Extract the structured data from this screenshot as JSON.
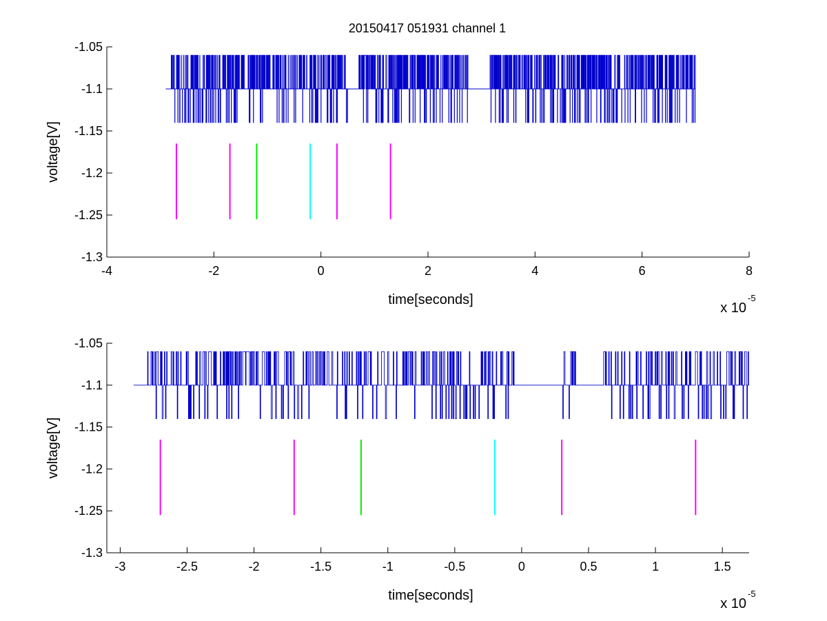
{
  "figure_title": "20150417 051931 channel 1",
  "colors": {
    "signal": "#0000cc",
    "magenta": "#ff00ff",
    "green": "#00ee00",
    "cyan": "#00ffff",
    "axis": "#000000"
  },
  "chart_data": [
    {
      "type": "line",
      "title": "20150417 051931 channel 1",
      "xlabel": "time[seconds]",
      "ylabel": "voltage[V]",
      "x_exponent_label": "x 10",
      "x_exponent": "-5",
      "xlim": [
        -4,
        8
      ],
      "ylim": [
        -1.3,
        -1.05
      ],
      "xticks": [
        -4,
        -2,
        0,
        2,
        4,
        6,
        8
      ],
      "xtick_labels": [
        "-4",
        "-2",
        "0",
        "2",
        "4",
        "6",
        "8"
      ],
      "yticks": [
        -1.3,
        -1.25,
        -1.2,
        -1.15,
        -1.1,
        -1.05
      ],
      "ytick_labels": [
        "-1.3",
        "-1.25",
        "-1.2",
        "-1.15",
        "-1.1",
        "-1.05"
      ],
      "grid": false,
      "series": [
        {
          "kind": "digitized_trace",
          "color": "#0000cc",
          "x_range": [
            -2.9,
            7.0
          ],
          "levels": [
            -1.14,
            -1.1,
            -1.06
          ],
          "baseline": -1.1,
          "quiet_intervals": [
            [
              -2.9,
              -2.8
            ],
            [
              0.5,
              0.7
            ],
            [
              2.75,
              3.15
            ]
          ],
          "description_points": [
            {
              "x": -2.9,
              "y": -1.1
            },
            {
              "x": 7.0,
              "y": -1.1
            }
          ]
        }
      ],
      "markers": [
        {
          "x": -2.7,
          "y_range": [
            -1.255,
            -1.165
          ],
          "color": "#ff00ff"
        },
        {
          "x": -1.7,
          "y_range": [
            -1.255,
            -1.165
          ],
          "color": "#ff00ff"
        },
        {
          "x": -1.2,
          "y_range": [
            -1.255,
            -1.165
          ],
          "color": "#00ee00"
        },
        {
          "x": -0.2,
          "y_range": [
            -1.255,
            -1.165
          ],
          "color": "#00ffff"
        },
        {
          "x": 0.3,
          "y_range": [
            -1.255,
            -1.165
          ],
          "color": "#ff00ff"
        },
        {
          "x": 1.3,
          "y_range": [
            -1.255,
            -1.165
          ],
          "color": "#ff00ff"
        }
      ]
    },
    {
      "type": "line",
      "title": "",
      "xlabel": "time[seconds]",
      "ylabel": "voltage[V]",
      "x_exponent_label": "x 10",
      "x_exponent": "-5",
      "xlim": [
        -3.1,
        1.7
      ],
      "ylim": [
        -1.3,
        -1.05
      ],
      "xticks": [
        -3,
        -2.5,
        -2,
        -1.5,
        -1,
        -0.5,
        0,
        0.5,
        1,
        1.5
      ],
      "xtick_labels": [
        "-3",
        "-2.5",
        "-2",
        "-1.5",
        "-1",
        "-0.5",
        "0",
        "0.5",
        "1",
        "1.5"
      ],
      "yticks": [
        -1.3,
        -1.25,
        -1.2,
        -1.15,
        -1.1,
        -1.05
      ],
      "ytick_labels": [
        "-1.3",
        "-1.25",
        "-1.2",
        "-1.15",
        "-1.1",
        "-1.05"
      ],
      "grid": false,
      "series": [
        {
          "kind": "digitized_trace",
          "color": "#0000cc",
          "x_range": [
            -2.9,
            1.7
          ],
          "levels": [
            -1.14,
            -1.1,
            -1.06
          ],
          "baseline": -1.1,
          "quiet_intervals": [
            [
              -2.9,
              -2.8
            ],
            [
              -0.05,
              0.3
            ],
            [
              0.4,
              0.6
            ]
          ],
          "description_points": [
            {
              "x": -2.9,
              "y": -1.1
            },
            {
              "x": 1.7,
              "y": -1.1
            }
          ]
        }
      ],
      "markers": [
        {
          "x": -2.7,
          "y_range": [
            -1.255,
            -1.165
          ],
          "color": "#ff00ff"
        },
        {
          "x": -1.7,
          "y_range": [
            -1.255,
            -1.165
          ],
          "color": "#ff00ff"
        },
        {
          "x": -1.2,
          "y_range": [
            -1.255,
            -1.165
          ],
          "color": "#00ee00"
        },
        {
          "x": -0.2,
          "y_range": [
            -1.255,
            -1.165
          ],
          "color": "#00ffff"
        },
        {
          "x": 0.3,
          "y_range": [
            -1.255,
            -1.165
          ],
          "color": "#ff00ff"
        },
        {
          "x": 1.3,
          "y_range": [
            -1.255,
            -1.165
          ],
          "color": "#ff00ff"
        }
      ]
    }
  ]
}
